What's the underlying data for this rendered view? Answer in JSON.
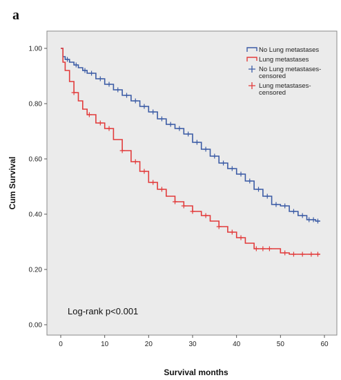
{
  "panel_label": "a",
  "chart_data": {
    "type": "line",
    "subtype": "kaplan-meier",
    "xlabel": "Survival months",
    "ylabel": "Cum Survival",
    "xlim": [
      0,
      60
    ],
    "ylim": [
      0,
      1.0
    ],
    "x_ticks": [
      "0",
      "10",
      "20",
      "30",
      "40",
      "50",
      "60"
    ],
    "y_ticks": [
      "0.00",
      "0.20",
      "0.40",
      "0.60",
      "0.80",
      "1.00"
    ],
    "annotation": "Log-rank  p<0.001",
    "legend_position": "top-right",
    "legend": [
      {
        "label": "No Lung metastases",
        "kind": "line",
        "color": "#3b5ba5"
      },
      {
        "label": "Lung metastases",
        "kind": "line",
        "color": "#e23b3b"
      },
      {
        "label": "No Lung metastases-censored",
        "kind": "censor",
        "color": "#3b5ba5"
      },
      {
        "label": "Lung metastases-censored",
        "kind": "censor",
        "color": "#e23b3b"
      }
    ],
    "series": [
      {
        "name": "No Lung metastases",
        "color": "#3b5ba5",
        "x": [
          0,
          0.5,
          1,
          2,
          3,
          4,
          5,
          6,
          8,
          10,
          12,
          14,
          16,
          18,
          20,
          22,
          24,
          26,
          28,
          30,
          32,
          34,
          36,
          38,
          40,
          42,
          44,
          46,
          48,
          50,
          52,
          54,
          56,
          58,
          59
        ],
        "y": [
          1.0,
          0.97,
          0.96,
          0.95,
          0.94,
          0.93,
          0.92,
          0.91,
          0.89,
          0.87,
          0.85,
          0.83,
          0.81,
          0.79,
          0.77,
          0.745,
          0.725,
          0.71,
          0.69,
          0.66,
          0.635,
          0.61,
          0.585,
          0.565,
          0.545,
          0.52,
          0.49,
          0.465,
          0.435,
          0.43,
          0.41,
          0.395,
          0.38,
          0.375,
          0.375
        ],
        "censored_x": [
          1.5,
          3.5,
          5.5,
          7,
          9,
          11,
          13,
          15,
          17,
          19,
          21,
          23,
          25,
          27,
          29,
          31,
          33,
          35,
          37,
          39,
          41,
          43,
          45,
          47,
          49,
          51,
          53,
          55,
          56.5,
          57.5,
          58.5
        ]
      },
      {
        "name": "Lung metastases",
        "color": "#e23b3b",
        "x": [
          0,
          0.5,
          1,
          2,
          3,
          4,
          5,
          6,
          8,
          10,
          12,
          14,
          16,
          18,
          20,
          22,
          24,
          26,
          28,
          30,
          32,
          34,
          36,
          38,
          40,
          42,
          44,
          46,
          48,
          50,
          52,
          54,
          56,
          58,
          59
        ],
        "y": [
          1.0,
          0.95,
          0.92,
          0.88,
          0.84,
          0.81,
          0.78,
          0.76,
          0.73,
          0.71,
          0.67,
          0.63,
          0.59,
          0.555,
          0.515,
          0.49,
          0.465,
          0.445,
          0.43,
          0.41,
          0.395,
          0.375,
          0.355,
          0.335,
          0.315,
          0.295,
          0.275,
          0.275,
          0.275,
          0.26,
          0.255,
          0.255,
          0.255,
          0.255,
          0.255
        ],
        "censored_x": [
          3,
          6.5,
          9,
          11,
          14,
          17,
          19,
          21,
          23,
          26,
          28,
          30,
          33,
          36,
          39,
          41,
          44.5,
          46,
          47.5,
          51,
          53,
          55,
          57,
          58.5
        ]
      }
    ]
  }
}
